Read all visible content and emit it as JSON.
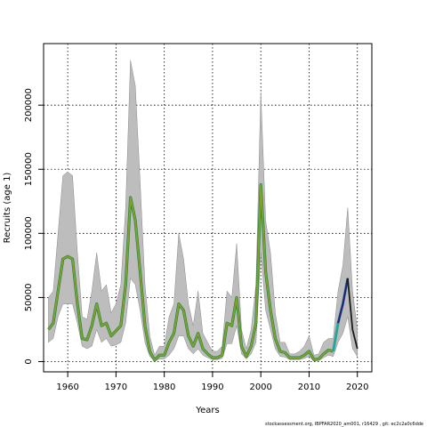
{
  "chart_data": {
    "type": "line",
    "xlabel": "Years",
    "ylabel": "Recruits (age 1)",
    "xlim": [
      1955,
      2023
    ],
    "ylim": [
      -8000,
      248000
    ],
    "x_ticks": [
      1960,
      1970,
      1980,
      1990,
      2000,
      2010,
      2020
    ],
    "y_ticks": [
      0,
      50000,
      100000,
      150000,
      200000
    ],
    "grid": true,
    "legend": "none",
    "colors": {
      "band": "#bdbdbd",
      "band_edge": "#8a8a8a",
      "line_main": "#7aa52b",
      "line_dark": "#2a7a4a",
      "line_recent": "#2a1f7a",
      "line_recent_teal": "#2aa39a",
      "line_tail": "#1a1a1a",
      "grid": "#000000"
    },
    "series": [
      {
        "years": [
          1956,
          1957,
          1958,
          1959,
          1960,
          1961,
          1962,
          1963,
          1964,
          1965,
          1966,
          1967,
          1968,
          1969,
          1970,
          1971,
          1972,
          1973,
          1974,
          1975,
          1976,
          1977,
          1978,
          1979,
          1980,
          1981,
          1982,
          1983,
          1984,
          1985,
          1986,
          1987,
          1988,
          1989,
          1990,
          1991,
          1992,
          1993,
          1994,
          1995,
          1996,
          1997,
          1998,
          1999,
          2000,
          2001,
          2002,
          2003,
          2004,
          2005,
          2006,
          2007,
          2008,
          2009,
          2010,
          2011,
          2012,
          2013,
          2014,
          2015,
          2016,
          2017,
          2018,
          2019,
          2020
        ],
        "median": [
          25000,
          30000,
          55000,
          80000,
          82000,
          80000,
          45000,
          18000,
          17000,
          28000,
          45000,
          28000,
          30000,
          20000,
          24000,
          28000,
          60000,
          128000,
          110000,
          70000,
          28000,
          8000,
          1000,
          5000,
          5000,
          15000,
          22000,
          45000,
          40000,
          20000,
          12000,
          22000,
          10000,
          6000,
          3000,
          3000,
          5000,
          30000,
          28000,
          50000,
          12000,
          4000,
          12000,
          30000,
          138000,
          70000,
          40000,
          18000,
          8000,
          7000,
          3000,
          3000,
          3000,
          5000,
          8000,
          1500,
          2000,
          6000,
          9000,
          8000,
          30000,
          45000,
          65000,
          25000,
          10000
        ],
        "lower": [
          15000,
          18000,
          35000,
          45000,
          45000,
          45000,
          30000,
          12000,
          10000,
          12000,
          25000,
          15000,
          18000,
          12000,
          13000,
          15000,
          30000,
          65000,
          60000,
          40000,
          15000,
          4000,
          500,
          2000,
          2000,
          5000,
          10000,
          20000,
          20000,
          10000,
          6000,
          10000,
          5000,
          3000,
          1500,
          1500,
          2500,
          14000,
          14000,
          28000,
          6000,
          2000,
          6000,
          15000,
          85000,
          40000,
          25000,
          10000,
          4000,
          3500,
          1500,
          1500,
          1500,
          2500,
          4000,
          500,
          800,
          3000,
          5000,
          4000,
          15000,
          22000,
          35000,
          10000,
          4000
        ],
        "upper": [
          50000,
          55000,
          100000,
          145000,
          148000,
          145000,
          85000,
          35000,
          33000,
          55000,
          85000,
          55000,
          60000,
          38000,
          45000,
          60000,
          120000,
          235000,
          215000,
          140000,
          60000,
          20000,
          5000,
          12000,
          12000,
          35000,
          45000,
          100000,
          80000,
          45000,
          28000,
          55000,
          22000,
          15000,
          8000,
          8000,
          12000,
          55000,
          50000,
          92000,
          25000,
          10000,
          25000,
          60000,
          210000,
          110000,
          85000,
          38000,
          15000,
          15000,
          6000,
          6000,
          8000,
          12000,
          20000,
          5000,
          6000,
          15000,
          18000,
          18000,
          55000,
          75000,
          120000,
          55000,
          25000
        ]
      }
    ]
  },
  "footnote": "stockassessment.org, IBPFAR2020_am001, r16429 , git: ec2c2a0c6dde"
}
